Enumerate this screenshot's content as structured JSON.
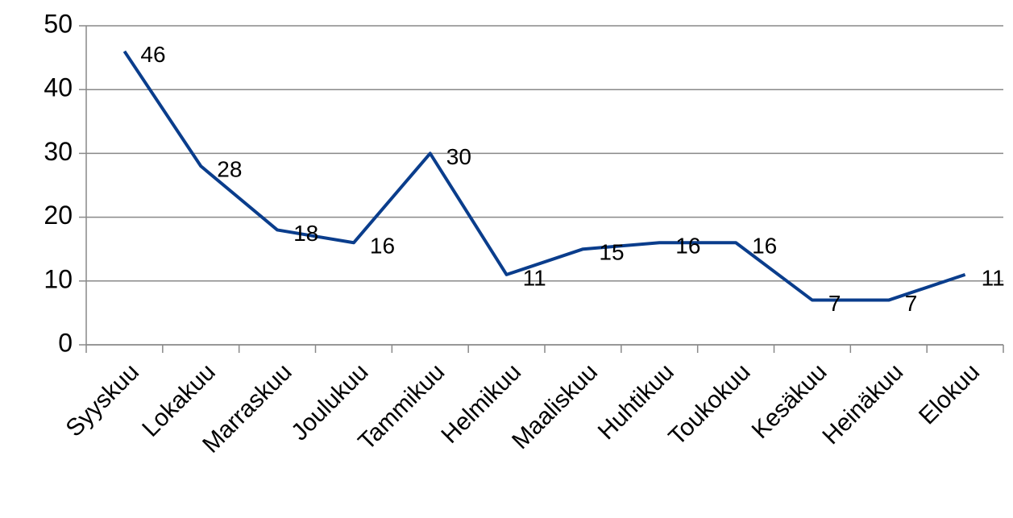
{
  "chart_data": {
    "type": "line",
    "categories": [
      "Syyskuu",
      "Lokakuu",
      "Marraskuu",
      "Joulukuu",
      "Tammikuu",
      "Helmikuu",
      "Maaliskuu",
      "Huhtikuu",
      "Toukokuu",
      "Kesäkuu",
      "Heinäkuu",
      "Elokuu"
    ],
    "values": [
      46,
      28,
      18,
      16,
      30,
      11,
      15,
      16,
      16,
      7,
      7,
      11
    ],
    "color": "#0a3d8c",
    "ylim": [
      0,
      50
    ],
    "yticks": [
      0,
      10,
      20,
      30,
      40,
      50
    ],
    "grid": true
  }
}
